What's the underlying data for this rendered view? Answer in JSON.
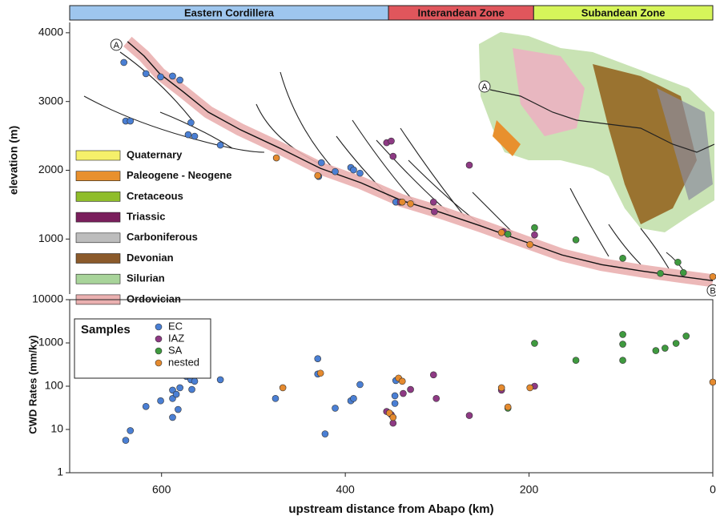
{
  "chart_data": [
    {
      "type": "profile",
      "zones": [
        {
          "name": "Eastern Cordillera",
          "from": 700,
          "to": 353,
          "color": "#9ec6ee"
        },
        {
          "name": "Interandean Zone",
          "from": 353,
          "to": 195,
          "color": "#e0565c"
        },
        {
          "name": "Subandean Zone",
          "from": 195,
          "to": 0,
          "color": "#d6f55a"
        }
      ],
      "y_label": "elevation (m)",
      "xlim": [
        700,
        0
      ],
      "ylim": [
        200,
        4150
      ],
      "yticks": [
        1000,
        2000,
        3000,
        4000
      ],
      "markers": [
        "A",
        "B"
      ],
      "profile": {
        "color": "#eab0b0",
        "x": [
          637,
          619,
          602,
          576,
          549,
          514,
          471,
          427,
          383,
          339,
          296,
          252,
          208,
          164,
          121,
          77,
          33,
          0
        ],
        "values": [
          3872,
          3662,
          3405,
          3137,
          2845,
          2588,
          2320,
          2028,
          1818,
          1561,
          1386,
          1188,
          978,
          768,
          628,
          534,
          453,
          394
        ]
      },
      "geology": [
        {
          "name": "Quaternary",
          "color": "#f5f06a"
        },
        {
          "name": "Paleogene - Neogene",
          "color": "#e8902e"
        },
        {
          "name": "Cretaceous",
          "color": "#8fbd2a"
        },
        {
          "name": "Triassic",
          "color": "#7a1f5c"
        },
        {
          "name": "Carboniferous",
          "color": "#bdbdbd"
        },
        {
          "name": "Devonian",
          "color": "#8b5a2b"
        },
        {
          "name": "Silurian",
          "color": "#a8d49a"
        },
        {
          "name": "Ordovician",
          "color": "#eab0b0"
        }
      ],
      "series": [
        {
          "name": "EC",
          "color": "#4a7fd4",
          "x": [
            641,
            617,
            601,
            588,
            580,
            639,
            634,
            568,
            571,
            564,
            536,
            426,
            429,
            411,
            394,
            391,
            384,
            345
          ],
          "values": [
            3568,
            3405,
            3358,
            3370,
            3312,
            2716,
            2716,
            2693,
            2518,
            2495,
            2366,
            2110,
            1911,
            1981,
            2040,
            2005,
            1958,
            1538
          ]
        },
        {
          "name": "IAZ",
          "color": "#8e3a84",
          "x": [
            355,
            350,
            348,
            265,
            304,
            303,
            340,
            228,
            194
          ],
          "values": [
            2401,
            2425,
            2203,
            2075,
            1538,
            1398,
            1538,
            1106,
            1060
          ]
        },
        {
          "name": "SA",
          "color": "#3f9a3f",
          "x": [
            223,
            194,
            149,
            98,
            38,
            57,
            32
          ],
          "values": [
            1071,
            1165,
            989,
            721,
            663,
            500,
            511
          ]
        },
        {
          "name": "nested",
          "color": "#e58a2e",
          "x": [
            475,
            430,
            338,
            329,
            199,
            230,
            0
          ],
          "values": [
            2180,
            1923,
            1538,
            1514,
            920,
            1094,
            453
          ]
        }
      ]
    },
    {
      "type": "scatter",
      "x_label": "upstream distance from Abapo (km)",
      "y_label": "CWD Rates (mm/ky)",
      "legend_title": "Samples",
      "log_y": true,
      "xlim": [
        700,
        0
      ],
      "xticks": [
        600,
        400,
        200,
        0
      ],
      "ylim": [
        1,
        10000
      ],
      "yticks": [
        1,
        10,
        100,
        1000,
        10000
      ],
      "series": [
        {
          "name": "EC",
          "color": "#4a7fd4",
          "x": [
            639,
            634,
            617,
            601,
            588,
            588,
            584,
            580,
            588,
            582,
            573,
            568,
            564,
            567,
            536,
            476,
            430,
            430,
            422,
            411,
            394,
            391,
            384,
            345,
            346,
            346
          ],
          "values": [
            5.6,
            9.4,
            34,
            46,
            81,
            52,
            65,
            92,
            19,
            29,
            168,
            141,
            130,
            84,
            141,
            52,
            432,
            191,
            7.9,
            31,
            46,
            52,
            109,
            135,
            60,
            40
          ]
        },
        {
          "name": "IAZ",
          "color": "#8e3a84",
          "x": [
            355,
            350,
            348,
            337,
            329,
            304,
            301,
            265,
            230,
            194
          ],
          "values": [
            26,
            22,
            14,
            68,
            84,
            183,
            52,
            21,
            81,
            100
          ]
        },
        {
          "name": "SA",
          "color": "#3f9a3f",
          "x": [
            223,
            194,
            149,
            98,
            98,
            98,
            62,
            52,
            40,
            29
          ],
          "values": [
            31,
            980,
            396,
            1570,
            937,
            396,
            664,
            757,
            978,
            1442
          ]
        },
        {
          "name": "nested",
          "color": "#e58a2e",
          "x": [
            468,
            427,
            352,
            348,
            342,
            338,
            230,
            223,
            199,
            0
          ],
          "values": [
            92,
            200,
            24,
            19,
            154,
            130,
            92,
            33,
            92,
            124
          ]
        }
      ]
    }
  ]
}
